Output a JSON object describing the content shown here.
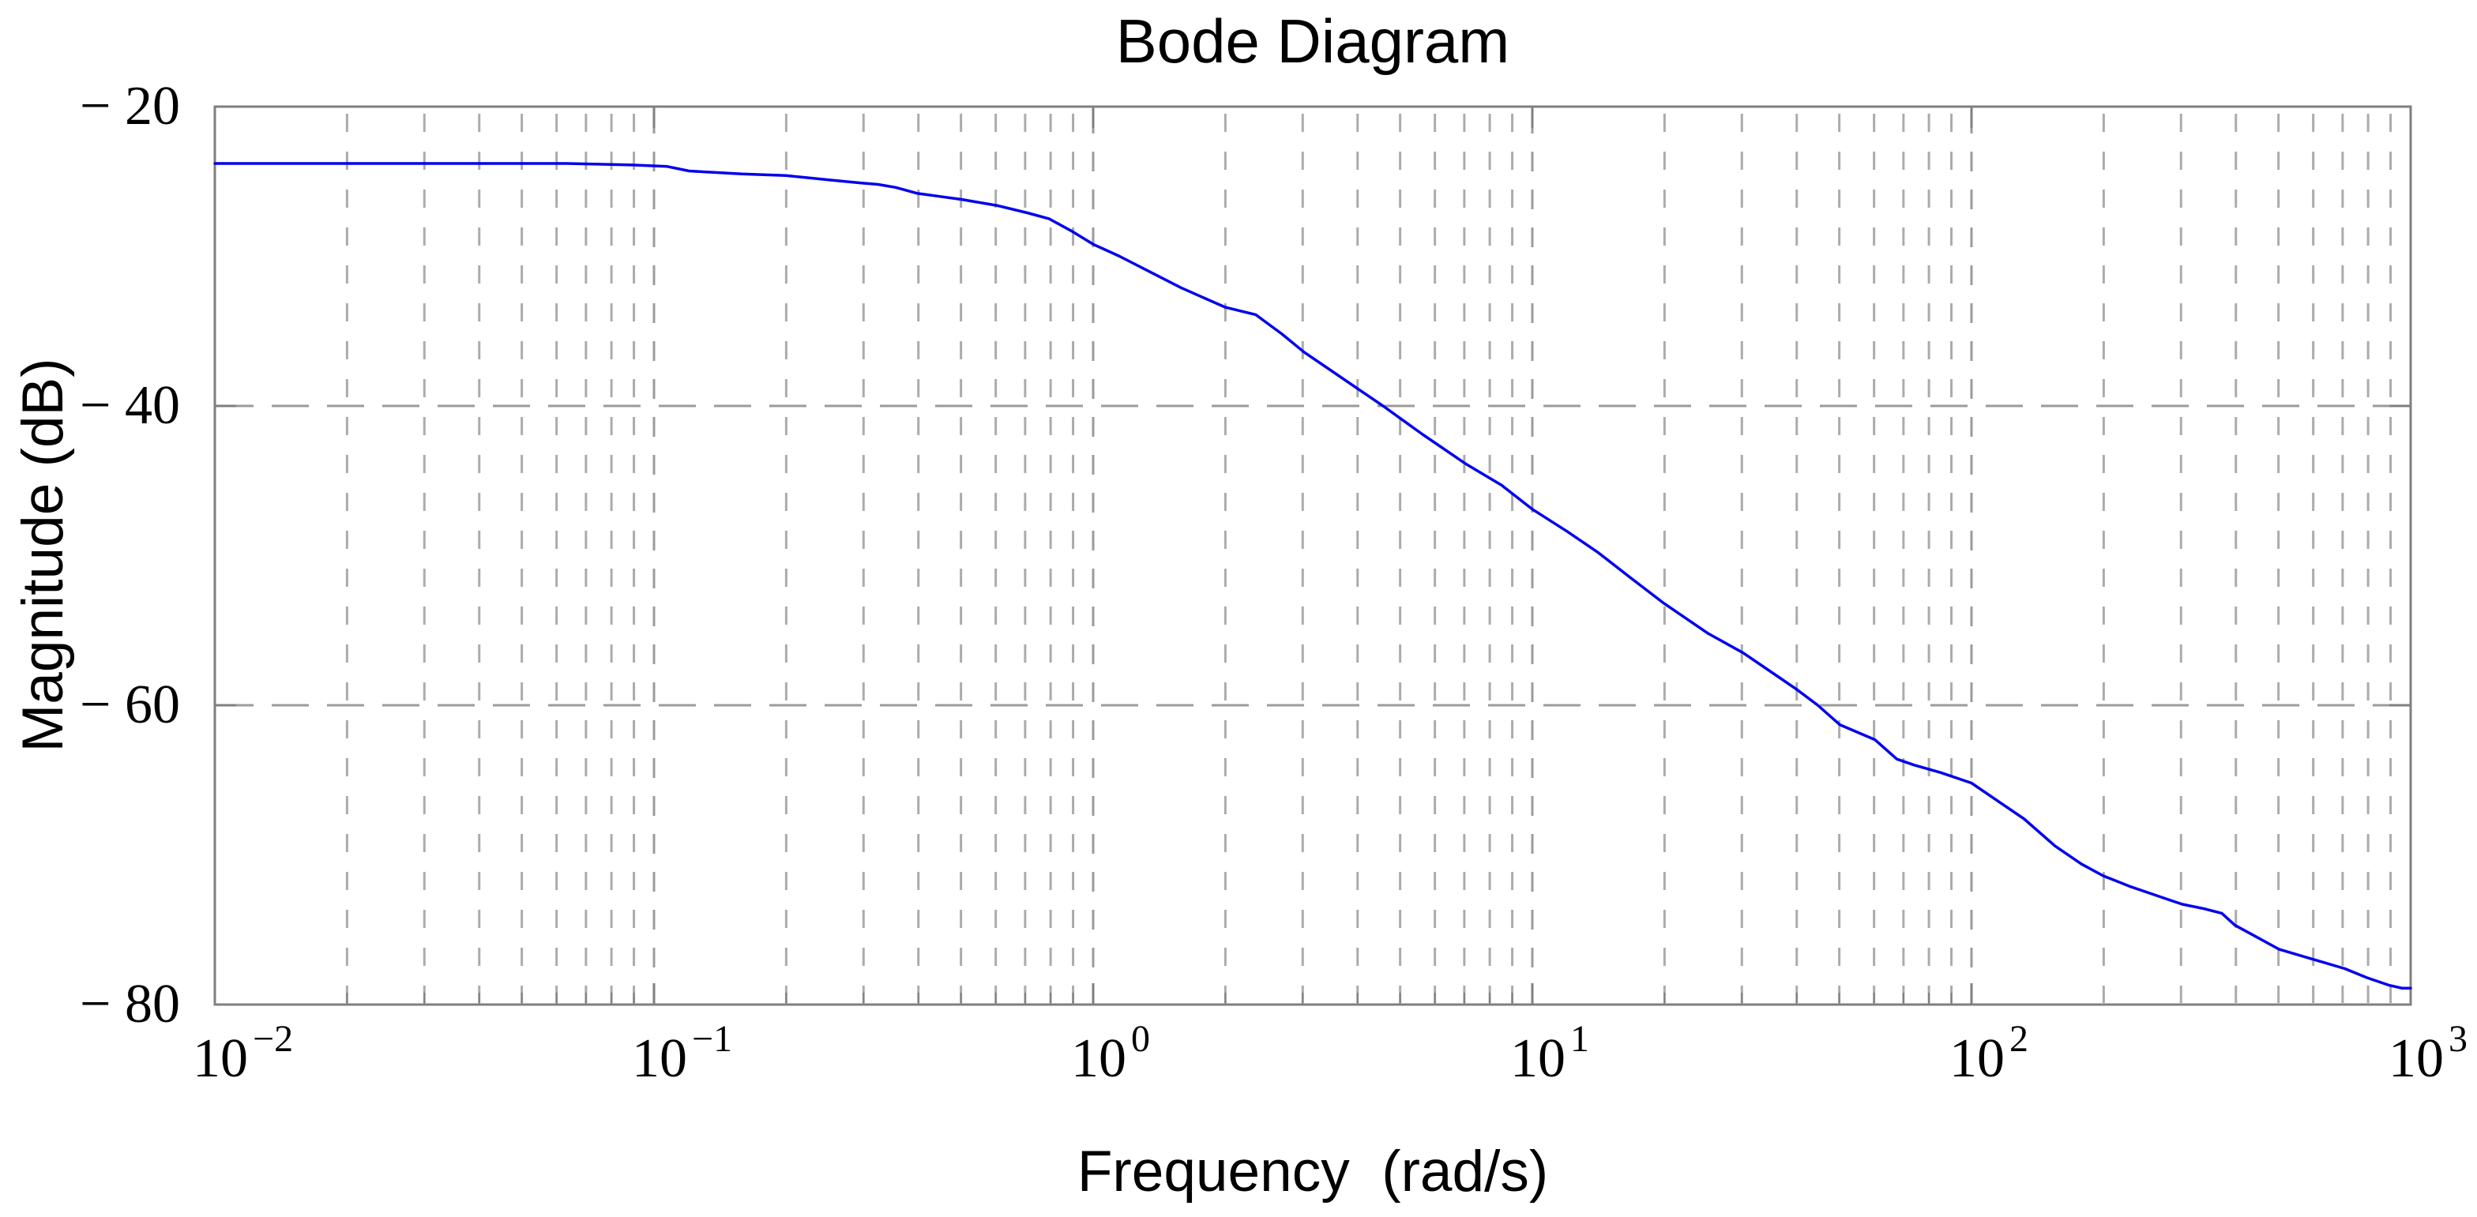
{
  "figure": {
    "background": "#ffffff",
    "frame_color": "#7f7f7f",
    "grid_minor_color": "#ababab",
    "grid_major_color": "#9b9b9b",
    "text_color": "#000000"
  },
  "title": "Bode Diagram",
  "axes": {
    "x": {
      "label": "Frequency  (rad/s)",
      "scale": "log10",
      "min_exponent": -2,
      "max_exponent": 3,
      "tick_base": "10",
      "tick_exponents": [
        "−2",
        "−1",
        "0",
        "1",
        "2",
        "3"
      ],
      "minor_multiples": [
        2,
        3,
        4,
        5,
        6,
        7,
        8,
        9
      ]
    },
    "y": {
      "label": "Magnitude (dB)",
      "min": -80,
      "max": -20,
      "tick_values": [
        -20,
        -40,
        -60,
        -80
      ],
      "tick_labels": [
        "− 20",
        "− 40",
        "− 60",
        "− 80"
      ],
      "grid_values": [
        -40,
        -60
      ]
    }
  },
  "chart_data": {
    "type": "line",
    "title": "Bode Diagram",
    "xlabel": "Frequency  (rad/s)",
    "ylabel": "Magnitude (dB)",
    "x_scale": "log",
    "x_range_log10": [
      -2,
      3
    ],
    "ylim": [
      -80,
      -20
    ],
    "grid": "on",
    "legend": "none",
    "series": [
      {
        "name": "magnitude-response",
        "color": "#0000ee",
        "points_log10w_db": [
          [
            -2.0,
            -23.8
          ],
          [
            -1.7,
            -23.8
          ],
          [
            -1.4,
            -23.8
          ],
          [
            -1.2,
            -23.8
          ],
          [
            -1.05,
            -23.9
          ],
          [
            -0.97,
            -24.0
          ],
          [
            -0.92,
            -24.3
          ],
          [
            -0.86,
            -24.4
          ],
          [
            -0.8,
            -24.5
          ],
          [
            -0.7,
            -24.6
          ],
          [
            -0.6,
            -24.9
          ],
          [
            -0.53,
            -25.1
          ],
          [
            -0.49,
            -25.2
          ],
          [
            -0.45,
            -25.4
          ],
          [
            -0.4,
            -25.8
          ],
          [
            -0.35,
            -26.0
          ],
          [
            -0.3,
            -26.2
          ],
          [
            -0.22,
            -26.6
          ],
          [
            -0.15,
            -27.1
          ],
          [
            -0.1,
            -27.5
          ],
          [
            -0.05,
            -28.3
          ],
          [
            0.0,
            -29.2
          ],
          [
            0.06,
            -30.0
          ],
          [
            0.12,
            -30.9
          ],
          [
            0.2,
            -32.1
          ],
          [
            0.3,
            -33.4
          ],
          [
            0.37,
            -33.9
          ],
          [
            0.43,
            -35.2
          ],
          [
            0.48,
            -36.4
          ],
          [
            0.54,
            -37.6
          ],
          [
            0.6,
            -38.8
          ],
          [
            0.66,
            -40.0
          ],
          [
            0.75,
            -41.9
          ],
          [
            0.85,
            -43.9
          ],
          [
            0.93,
            -45.3
          ],
          [
            1.0,
            -46.9
          ],
          [
            1.08,
            -48.4
          ],
          [
            1.15,
            -49.8
          ],
          [
            1.22,
            -51.4
          ],
          [
            1.3,
            -53.2
          ],
          [
            1.4,
            -55.2
          ],
          [
            1.48,
            -56.5
          ],
          [
            1.56,
            -58.1
          ],
          [
            1.6,
            -58.9
          ],
          [
            1.65,
            -60.0
          ],
          [
            1.7,
            -61.3
          ],
          [
            1.78,
            -62.3
          ],
          [
            1.83,
            -63.6
          ],
          [
            1.87,
            -64.0
          ],
          [
            1.93,
            -64.5
          ],
          [
            2.0,
            -65.2
          ],
          [
            2.06,
            -66.4
          ],
          [
            2.12,
            -67.6
          ],
          [
            2.19,
            -69.4
          ],
          [
            2.25,
            -70.6
          ],
          [
            2.3,
            -71.4
          ],
          [
            2.36,
            -72.1
          ],
          [
            2.4,
            -72.5
          ],
          [
            2.44,
            -72.9
          ],
          [
            2.48,
            -73.3
          ],
          [
            2.53,
            -73.6
          ],
          [
            2.57,
            -73.9
          ],
          [
            2.6,
            -74.7
          ],
          [
            2.65,
            -75.5
          ],
          [
            2.7,
            -76.3
          ],
          [
            2.78,
            -77.0
          ],
          [
            2.85,
            -77.6
          ],
          [
            2.9,
            -78.2
          ],
          [
            2.95,
            -78.7
          ],
          [
            2.98,
            -78.9
          ],
          [
            3.0,
            -78.9
          ]
        ]
      }
    ]
  }
}
